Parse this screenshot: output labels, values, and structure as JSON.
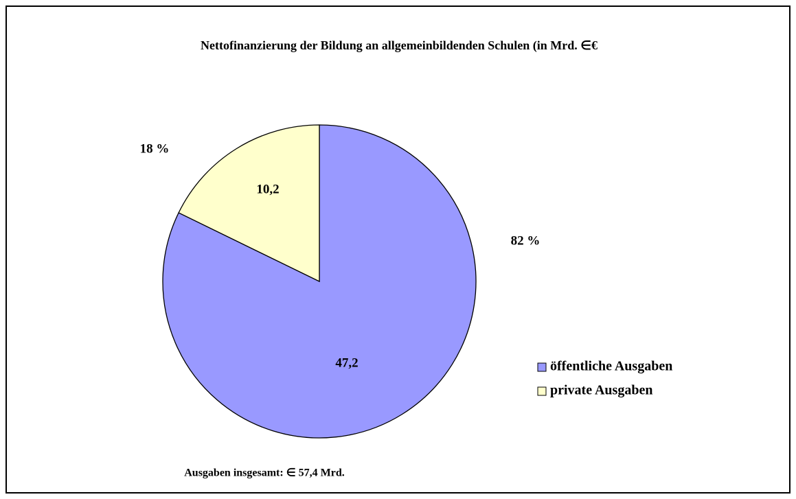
{
  "chart_data": {
    "type": "pie",
    "title": "Nettofinanzierung der Bildung an allgemeinbildenden Schulen (in Mrd. ∈€",
    "categories": [
      "öffentliche Ausgaben",
      "private Ausgaben"
    ],
    "values": [
      47.2,
      10.2
    ],
    "value_labels": [
      "47,2",
      "10,2"
    ],
    "percentages": [
      82,
      18
    ],
    "percentage_labels": [
      "82 %",
      "18 %"
    ],
    "colors": [
      "#9999ff",
      "#ffffcc"
    ],
    "annotation": "Ausgaben insgesamt: ∈ 57,4 Mrd.",
    "legend": "right"
  }
}
